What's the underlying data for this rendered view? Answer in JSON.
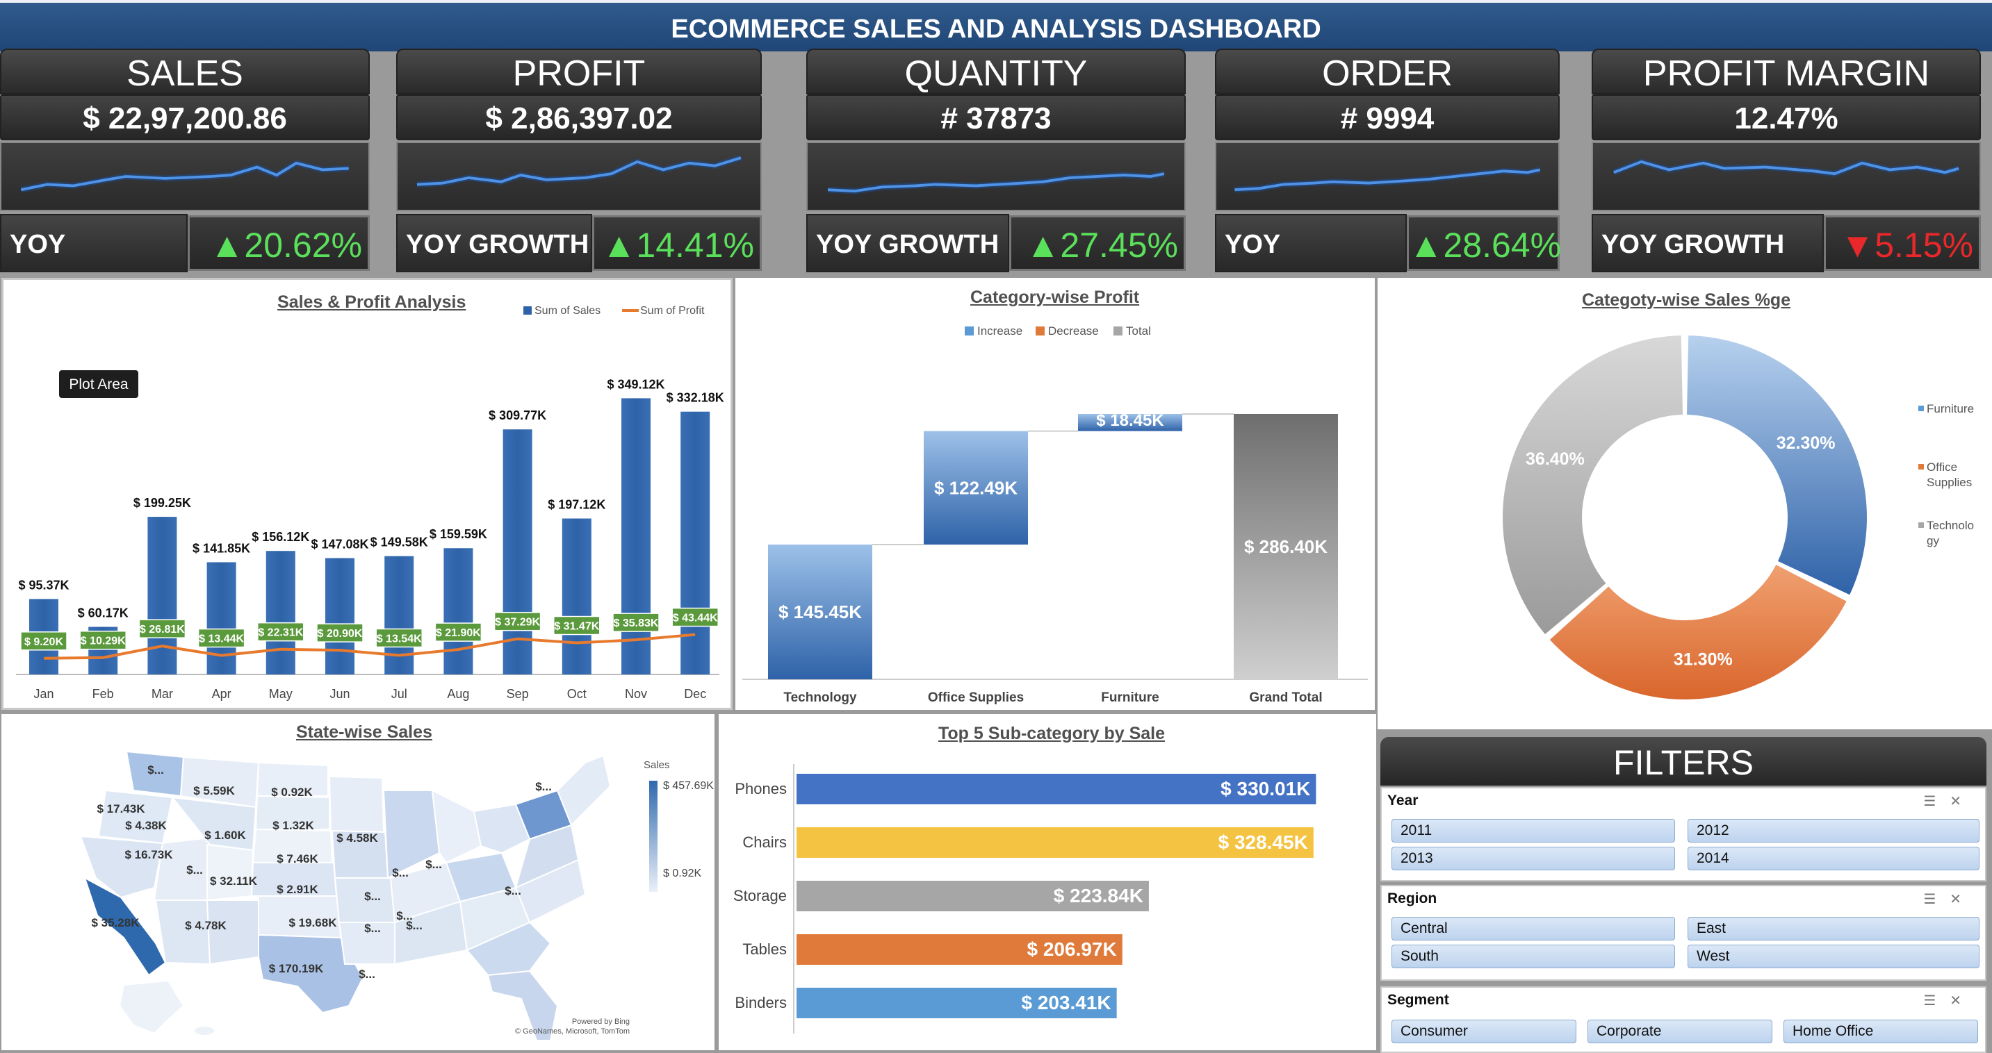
{
  "title": "ECOMMERCE SALES AND ANALYSIS DASHBOARD",
  "kpis": [
    {
      "label": "SALES",
      "value": "$  22,97,200.86",
      "yoy_label": "YOY GROWTH",
      "yoy": "▲20.62%",
      "trend": "up"
    },
    {
      "label": "PROFIT",
      "value": "$  2,86,397.02",
      "yoy_label": "YOY GROWTH",
      "yoy": "▲14.41%",
      "trend": "up"
    },
    {
      "label": "QUANTITY",
      "value": "# 37873",
      "yoy_label": "YOY GROWTH",
      "yoy": "▲27.45%",
      "trend": "up"
    },
    {
      "label": "ORDER",
      "value": "# 9994",
      "yoy_label": "YOY GROWTH",
      "yoy": "▲28.64%",
      "trend": "up"
    },
    {
      "label": "PROFIT MARGIN",
      "value": "12.47%",
      "yoy_label": "YOY GROWTH",
      "yoy": "▼5.15%",
      "trend": "down"
    }
  ],
  "colors": {
    "accent": "#2f63a8",
    "profit_line": "#e87a2e",
    "profit_label": "#5a9a3a",
    "up": "#5be05b",
    "down": "#e8282a",
    "orange": "#e07a3a",
    "gray": "#a6a6a6",
    "yellow": "#f5c342",
    "blue_bar": "#4472c4",
    "light_blue": "#5b9bd5"
  },
  "chart_data": [
    {
      "type": "bar",
      "title": "Sales & Profit Analysis",
      "legend": [
        "Sum of Sales",
        "Sum of Profit"
      ],
      "tooltip": "Plot Area",
      "categories": [
        "Jan",
        "Feb",
        "Mar",
        "Apr",
        "May",
        "Jun",
        "Jul",
        "Aug",
        "Sep",
        "Oct",
        "Nov",
        "Dec"
      ],
      "series": [
        {
          "name": "Sum of Sales",
          "values": [
            95.37,
            60.17,
            199.25,
            141.85,
            156.12,
            147.08,
            149.58,
            159.59,
            309.77,
            197.12,
            349.12,
            332.18
          ],
          "labels": [
            "$ 95.37K",
            "$ 60.17K",
            "$ 199.25K",
            "$ 141.85K",
            "$ 156.12K",
            "$ 147.08K",
            "$ 149.58K",
            "$ 159.59K",
            "$ 309.77K",
            "$ 197.12K",
            "$ 349.12K",
            "$ 332.18K"
          ]
        },
        {
          "name": "Sum of Profit",
          "values": [
            9.2,
            10.29,
            26.81,
            13.44,
            22.31,
            20.9,
            13.54,
            21.9,
            37.29,
            31.47,
            35.83,
            43.44
          ],
          "labels": [
            "$ 9.20K",
            "$ 10.29K",
            "$ 26.81K",
            "$ 13.44K",
            "$ 22.31K",
            "$ 20.90K",
            "$ 13.54K",
            "$ 21.90K",
            "$ 37.29K",
            "$ 31.47K",
            "$ 35.83K",
            "$ 43.44K"
          ]
        }
      ],
      "ylim": [
        0,
        360
      ]
    },
    {
      "type": "bar",
      "subtype": "waterfall",
      "title": "Category-wise Profit",
      "legend": [
        "Increase",
        "Decrease",
        "Total"
      ],
      "categories": [
        "Technology",
        "Office Supplies",
        "Furniture",
        "Grand Total"
      ],
      "values": [
        145.45,
        122.49,
        18.45,
        286.4
      ],
      "labels": [
        "$ 145.45K",
        "$ 122.49K",
        "$ 18.45K",
        "$ 286.40K"
      ],
      "ylim": [
        0,
        300
      ]
    },
    {
      "type": "pie",
      "subtype": "doughnut",
      "title": "Categoty-wise Sales %ge",
      "categories": [
        "Furniture",
        "Office Supplies",
        "Technology"
      ],
      "legend_labels": [
        "Furniture",
        "Office\nSupplies",
        "Technolo\ngy"
      ],
      "values": [
        32.3,
        31.3,
        36.4
      ],
      "labels": [
        "32.30%",
        "31.30%",
        "36.40%"
      ]
    },
    {
      "type": "bar",
      "subtype": "horizontal",
      "title": "Top 5 Sub-category by Sale",
      "categories": [
        "Phones",
        "Chairs",
        "Storage",
        "Tables",
        "Binders"
      ],
      "values": [
        330.01,
        328.45,
        223.84,
        206.97,
        203.41
      ],
      "labels": [
        "$ 330.01K",
        "$ 328.45K",
        "$ 223.84K",
        "$ 206.97K",
        "$ 203.41K"
      ],
      "xlim": [
        0,
        340
      ]
    }
  ],
  "map": {
    "title": "State-wise Sales",
    "legend_title": "Sales",
    "legend_max": "$ 457.69K",
    "legend_min": "$ 0.92K",
    "credit1": "Powered by Bing",
    "credit2": "© GeoNames, Microsoft, TomTom",
    "labels": [
      "$...",
      "$ 5.59K",
      "$ 0.92K",
      "$...",
      "$ 17.43K",
      "$ 4.38K",
      "$ 1.32K",
      "$ 1.60K",
      "$ 4.58K",
      "$ 16.73K",
      "$ 7.46K",
      "$...",
      "$...",
      "$...",
      "$ 32.11K",
      "$ 2.91K",
      "$...",
      "$ 35.28K",
      "$ 4.78K",
      "$ 19.68K",
      "$...",
      "$...",
      "$ 170.19K",
      "$...",
      "$...",
      "$..."
    ]
  },
  "filters": {
    "title": "FILTERS",
    "year": {
      "title": "Year",
      "options": [
        "2011",
        "2012",
        "2013",
        "2014"
      ]
    },
    "region": {
      "title": "Region",
      "options": [
        "Central",
        "East",
        "South",
        "West"
      ]
    },
    "segment": {
      "title": "Segment",
      "options": [
        "Consumer",
        "Corporate",
        "Home Office"
      ]
    }
  }
}
